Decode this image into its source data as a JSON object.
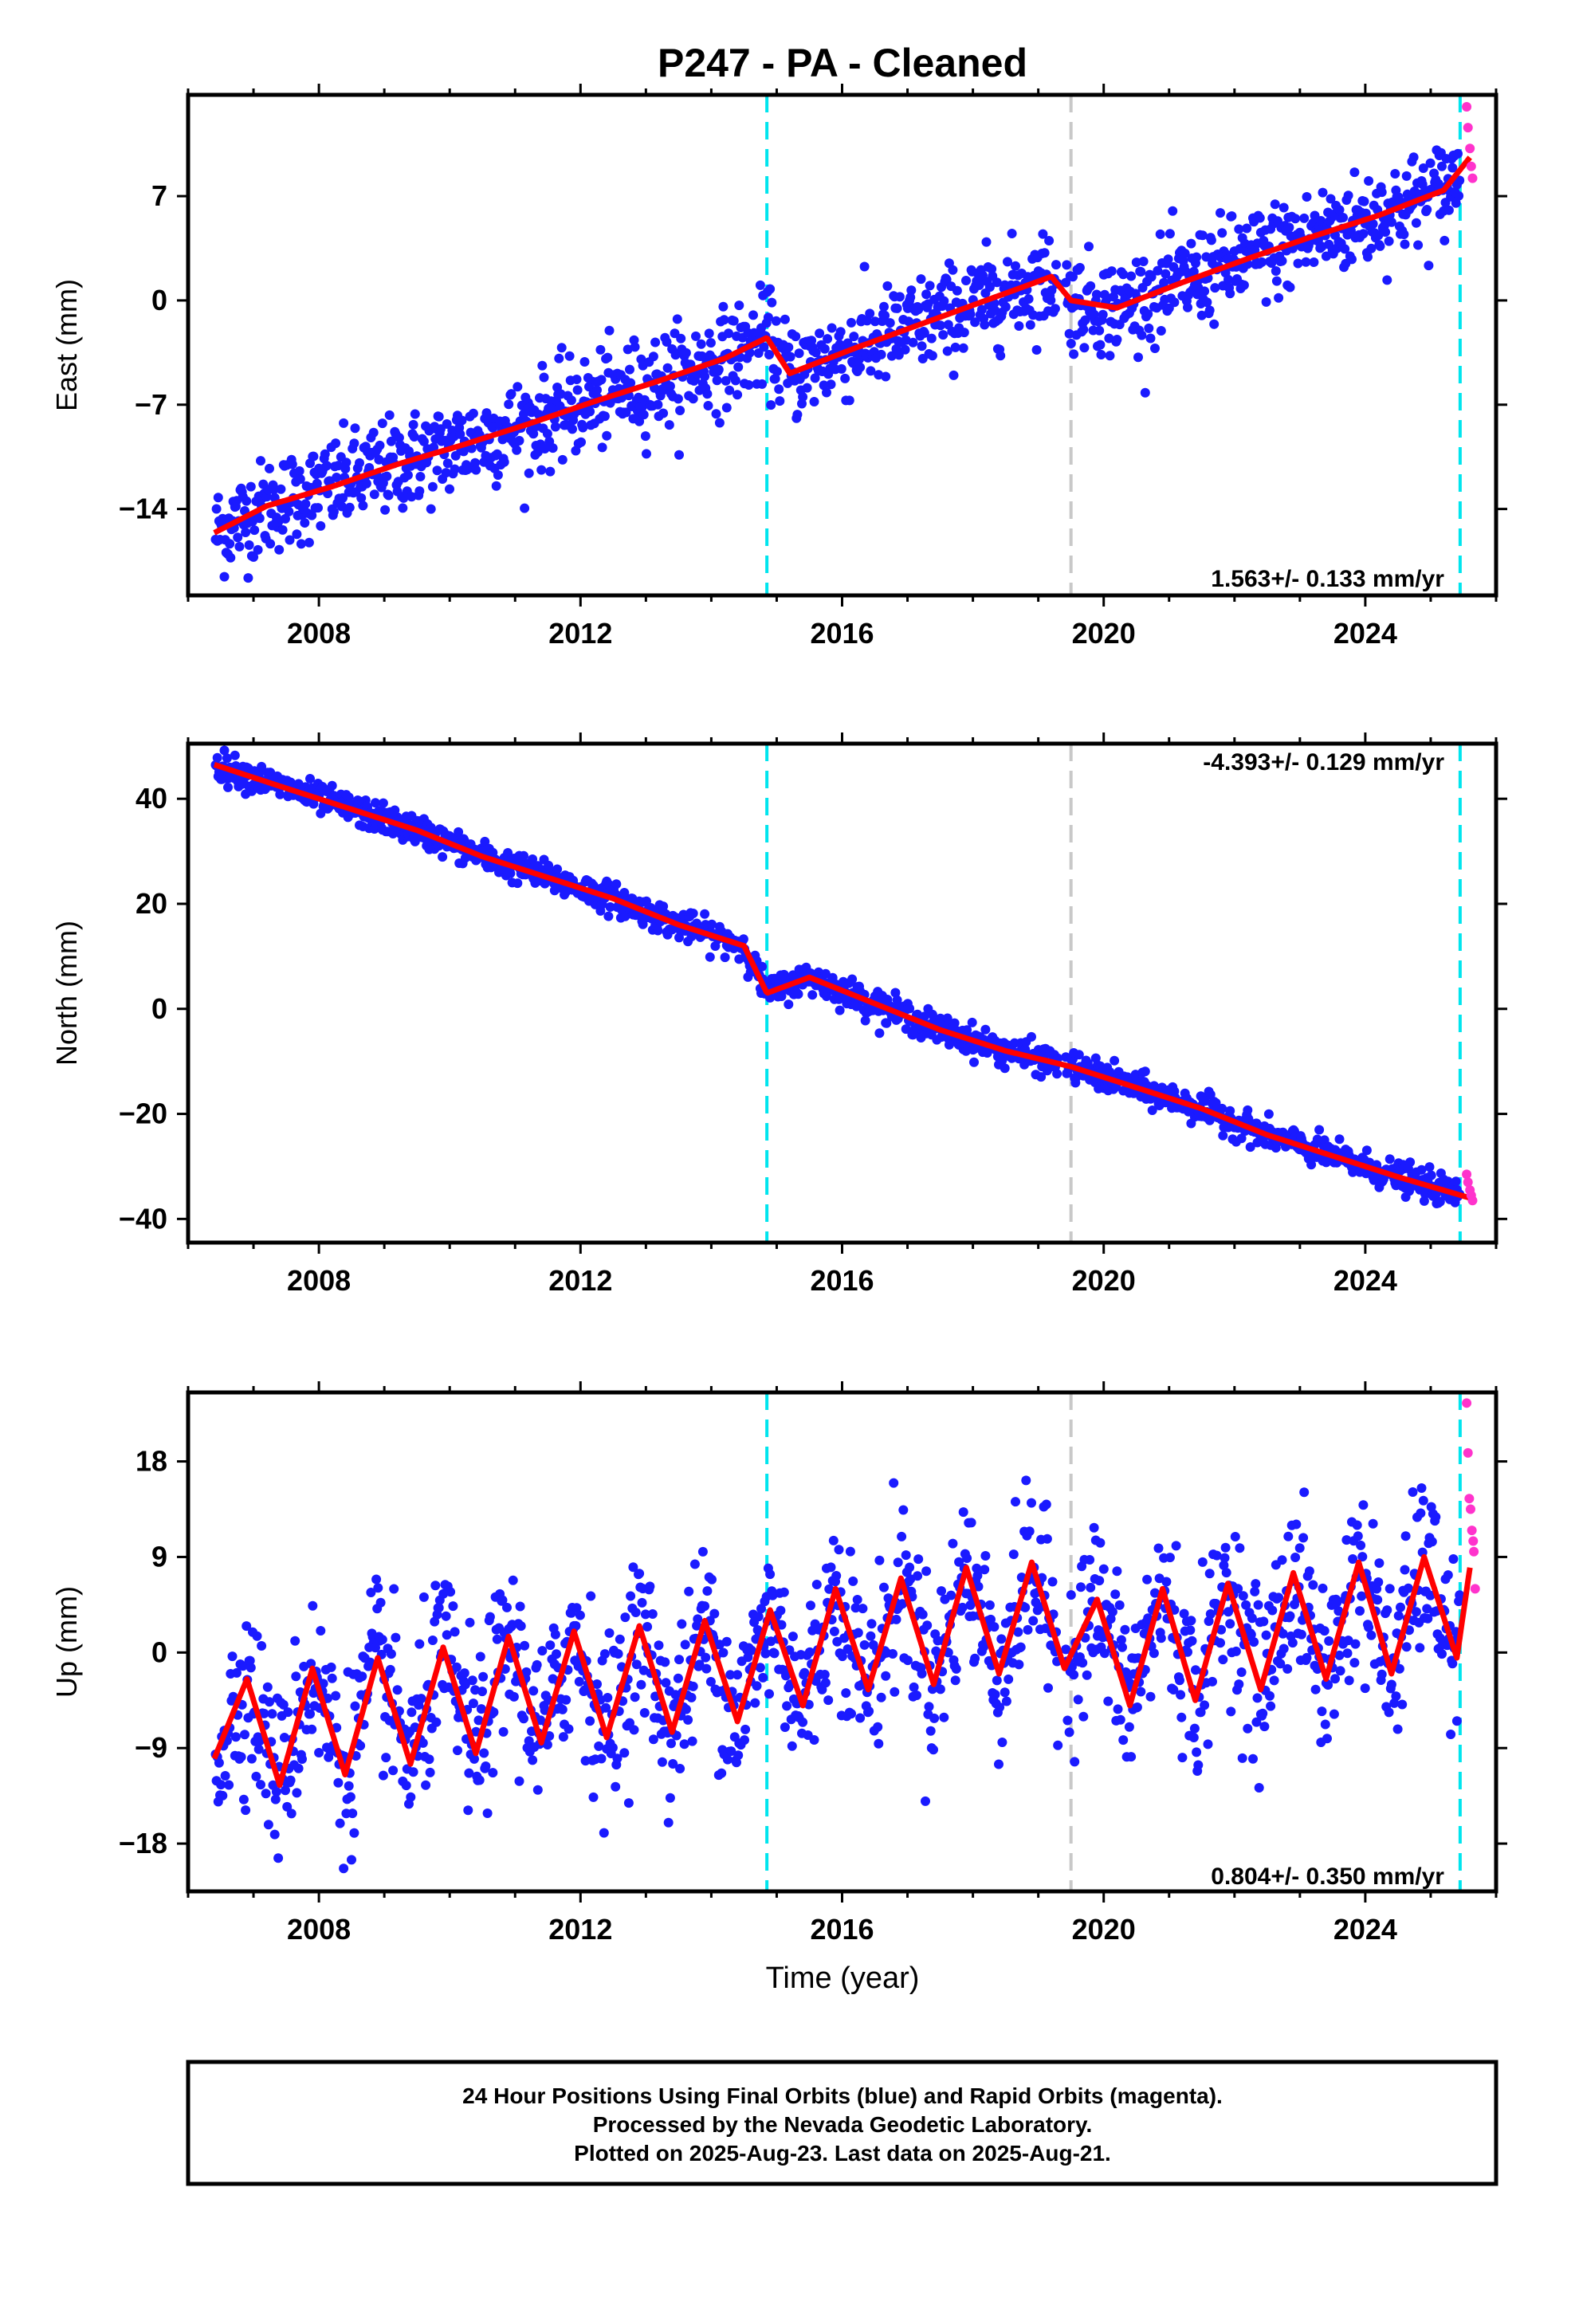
{
  "title": "P247  - PA - Cleaned",
  "x_axis_label": "Time (year)",
  "x_ticks": [
    2008,
    2012,
    2016,
    2020,
    2024
  ],
  "footer_lines": [
    "24 Hour Positions Using Final Orbits (blue) and Rapid Orbits (magenta).",
    "Processed by the Nevada Geodetic Laboratory.",
    "Plotted on 2025-Aug-23. Last data on 2025-Aug-21."
  ],
  "colors": {
    "final_orbits": "#1a1aff",
    "rapid_orbits": "#ff33cc",
    "model_fit": "#ff0000",
    "equipment_change": "#00e5ee",
    "other_event": "#c8c8c8"
  },
  "chart_data": [
    {
      "type": "scatter",
      "component": "East",
      "ylabel": "East (mm)",
      "yticks": [
        -14,
        -7,
        0,
        7
      ],
      "xlim": [
        2006.0,
        2026.0
      ],
      "ylim": [
        -19.8,
        13.8
      ],
      "rate_label": "1.563+/- 0.133 mm/yr",
      "rate_position": "bottom-right",
      "start_value": -15.6,
      "trend_mm_per_yr": 1.563,
      "seasonal_amplitude": 1.8,
      "series": [
        {
          "name": "model",
          "x": [
            2006.4,
            2007.2,
            2008.2,
            2009.2,
            2010.2,
            2011.2,
            2012.2,
            2013.2,
            2014.2,
            2014.85,
            2015.2,
            2016.2,
            2017.2,
            2018.2,
            2019.2,
            2019.5,
            2020.2,
            2021.2,
            2022.2,
            2023.2,
            2024.2,
            2025.2,
            2025.6
          ],
          "y": [
            -15.6,
            -13.8,
            -12.5,
            -11.0,
            -9.7,
            -8.3,
            -6.8,
            -5.4,
            -3.9,
            -2.5,
            -4.9,
            -3.2,
            -1.6,
            0.0,
            1.6,
            0.0,
            -0.5,
            1.2,
            2.8,
            4.3,
            5.7,
            7.4,
            9.6
          ]
        }
      ],
      "offsets": [
        {
          "x": 2014.85,
          "kind": "equipment"
        },
        {
          "x": 2019.5,
          "kind": "other"
        },
        {
          "x": 2025.45,
          "kind": "equipment"
        }
      ],
      "rapid_points": {
        "x": [
          2025.55,
          2025.57,
          2025.6,
          2025.62,
          2025.64
        ],
        "y": [
          13.0,
          11.6,
          10.2,
          9.0,
          8.2
        ]
      }
    },
    {
      "type": "scatter",
      "component": "North",
      "ylabel": "North (mm)",
      "yticks": [
        -40,
        -20,
        0,
        20,
        40
      ],
      "xlim": [
        2006.0,
        2026.0
      ],
      "ylim": [
        -44.5,
        50.5
      ],
      "rate_label": "-4.393+/- 0.129 mm/yr",
      "rate_position": "top-right",
      "start_value": 46.5,
      "trend_mm_per_yr": -4.393,
      "seasonal_amplitude": 2.0,
      "series": [
        {
          "name": "model",
          "x": [
            2006.4,
            2007.5,
            2008.5,
            2009.5,
            2010.5,
            2011.5,
            2012.5,
            2013.5,
            2014.5,
            2014.85,
            2015.5,
            2016.5,
            2017.5,
            2018.5,
            2019.5,
            2020.5,
            2021.5,
            2022.5,
            2023.5,
            2024.5,
            2025.6
          ],
          "y": [
            46.5,
            42.0,
            38.0,
            34.0,
            29.0,
            25.0,
            21.0,
            16.0,
            12.0,
            3.0,
            6.0,
            1.0,
            -4.0,
            -8.0,
            -11.0,
            -15.0,
            -19.0,
            -24.0,
            -28.0,
            -32.0,
            -36.0
          ]
        }
      ],
      "offsets": [
        {
          "x": 2014.85,
          "kind": "equipment"
        },
        {
          "x": 2019.5,
          "kind": "other"
        },
        {
          "x": 2025.45,
          "kind": "equipment"
        }
      ],
      "rapid_points": {
        "x": [
          2025.55,
          2025.57,
          2025.6,
          2025.62,
          2025.64
        ],
        "y": [
          -31.5,
          -33.0,
          -34.5,
          -35.5,
          -36.5
        ]
      }
    },
    {
      "type": "scatter",
      "component": "Up",
      "ylabel": "Up (mm)",
      "yticks": [
        -18,
        -9,
        0,
        9,
        18
      ],
      "xlim": [
        2006.0,
        2026.0
      ],
      "ylim": [
        -22.5,
        24.5
      ],
      "rate_label": "0.804+/- 0.350 mm/yr",
      "rate_position": "bottom-right",
      "start_value": -4.0,
      "trend_mm_per_yr": 0.804,
      "seasonal_amplitude": 6.5,
      "series": [
        {
          "name": "model",
          "x": [
            2006.4,
            2006.9,
            2007.4,
            2007.9,
            2008.4,
            2008.9,
            2009.4,
            2009.9,
            2010.4,
            2010.9,
            2011.4,
            2011.9,
            2012.4,
            2012.9,
            2013.4,
            2013.9,
            2014.4,
            2014.9,
            2015.4,
            2015.9,
            2016.4,
            2016.9,
            2017.4,
            2017.9,
            2018.4,
            2018.9,
            2019.4,
            2019.9,
            2020.4,
            2020.9,
            2021.4,
            2021.9,
            2022.4,
            2022.9,
            2023.4,
            2023.9,
            2024.4,
            2024.9,
            2025.4,
            2025.6
          ],
          "y": [
            -10.0,
            -2.5,
            -12.5,
            -1.5,
            -11.5,
            -0.5,
            -10.5,
            0.5,
            -9.5,
            1.5,
            -8.5,
            2.0,
            -8.0,
            2.5,
            -7.5,
            3.0,
            -6.5,
            4.0,
            -5.0,
            6.0,
            -3.5,
            7.0,
            -3.0,
            8.0,
            -2.0,
            8.5,
            -1.5,
            5.0,
            -5.0,
            6.0,
            -4.5,
            6.5,
            -3.5,
            7.5,
            -2.5,
            8.5,
            -2.0,
            9.0,
            -0.5,
            8.0
          ]
        }
      ],
      "offsets": [
        {
          "x": 2014.85,
          "kind": "equipment"
        },
        {
          "x": 2019.5,
          "kind": "other"
        },
        {
          "x": 2025.45,
          "kind": "equipment"
        }
      ],
      "rapid_points": {
        "x": [
          2025.55,
          2025.57,
          2025.59,
          2025.61,
          2025.63,
          2025.65,
          2025.66,
          2025.68
        ],
        "y": [
          23.5,
          18.8,
          14.5,
          13.5,
          11.5,
          10.5,
          9.5,
          6.0
        ]
      }
    }
  ]
}
